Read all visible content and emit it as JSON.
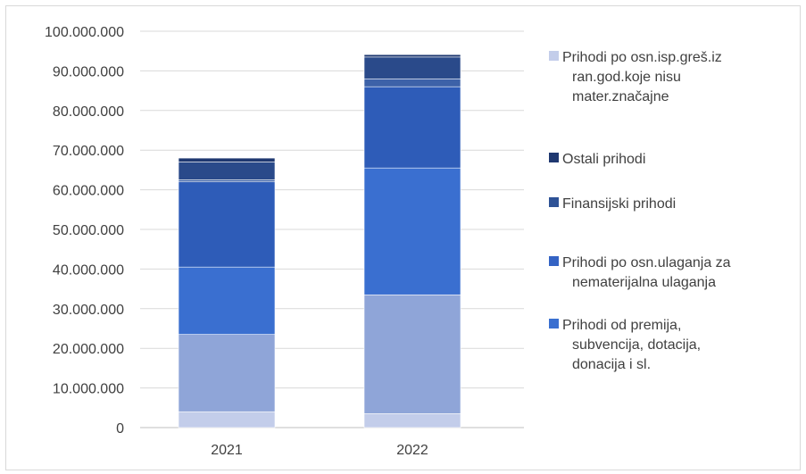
{
  "chart_data": {
    "type": "bar",
    "stacked": true,
    "categories": [
      "2021",
      "2022"
    ],
    "ylim": [
      0,
      100000000
    ],
    "yticks": [
      0,
      10000000,
      20000000,
      30000000,
      40000000,
      50000000,
      60000000,
      70000000,
      80000000,
      90000000,
      100000000
    ],
    "ytick_labels": [
      "0",
      "10.000.000",
      "20.000.000",
      "30.000.000",
      "40.000.000",
      "50.000.000",
      "60.000.000",
      "70.000.000",
      "80.000.000",
      "90.000.000",
      "100.000.000"
    ],
    "grid": true,
    "legend_position": "right",
    "series": [
      {
        "key": "s_bottom",
        "values": [
          4000000,
          3500000
        ],
        "color": "#c3cdea"
      },
      {
        "key": "s_light",
        "values": [
          19500000,
          30000000
        ],
        "color": "#8fa5d8"
      },
      {
        "key": "s_premije",
        "name": "Prihodi od premija, subvencija, dotacija, donacija i sl.",
        "values": [
          17000000,
          32000000
        ],
        "color": "#3a6fd0"
      },
      {
        "key": "s_ulaganja",
        "name": "Prihodi po osn.ulaganja za nematerijalna ulaganja",
        "values": [
          21500000,
          20500000
        ],
        "color": "#2e5cb8"
      },
      {
        "key": "s_finansijski",
        "name": "Finansijski prihodi",
        "values": [
          500000,
          2000000
        ],
        "color": "#3d62a8"
      },
      {
        "key": "s_ostali",
        "name": "Ostali prihodi",
        "values": [
          4500000,
          5500000
        ],
        "color": "#2a4a8a"
      },
      {
        "key": "s_greske",
        "name": "Prihodi po osn.isp.greš.iz ran.god.koje nisu mater.značajne",
        "values": [
          1000000,
          600000
        ],
        "color": "#1f3870"
      }
    ],
    "legend": [
      {
        "series": "s_greske",
        "lines": [
          "Prihodi po osn.isp.greš.iz",
          "ran.god.koje nisu",
          "mater.značajne"
        ],
        "color": "#c3cdea"
      },
      {
        "series": "s_ostali",
        "lines": [
          "Ostali prihodi"
        ],
        "color": "#1f3870"
      },
      {
        "series": "s_finansijski",
        "lines": [
          "Finansijski prihodi"
        ],
        "color": "#2e5296"
      },
      {
        "series": "s_ulaganja",
        "lines": [
          "Prihodi po osn.ulaganja za",
          "nematerijalna ulaganja"
        ],
        "color": "#3463c4"
      },
      {
        "series": "s_premije",
        "lines": [
          "Prihodi od premija,",
          "subvencija, dotacija,",
          "donacija i sl."
        ],
        "color": "#3a6fd0"
      }
    ]
  }
}
